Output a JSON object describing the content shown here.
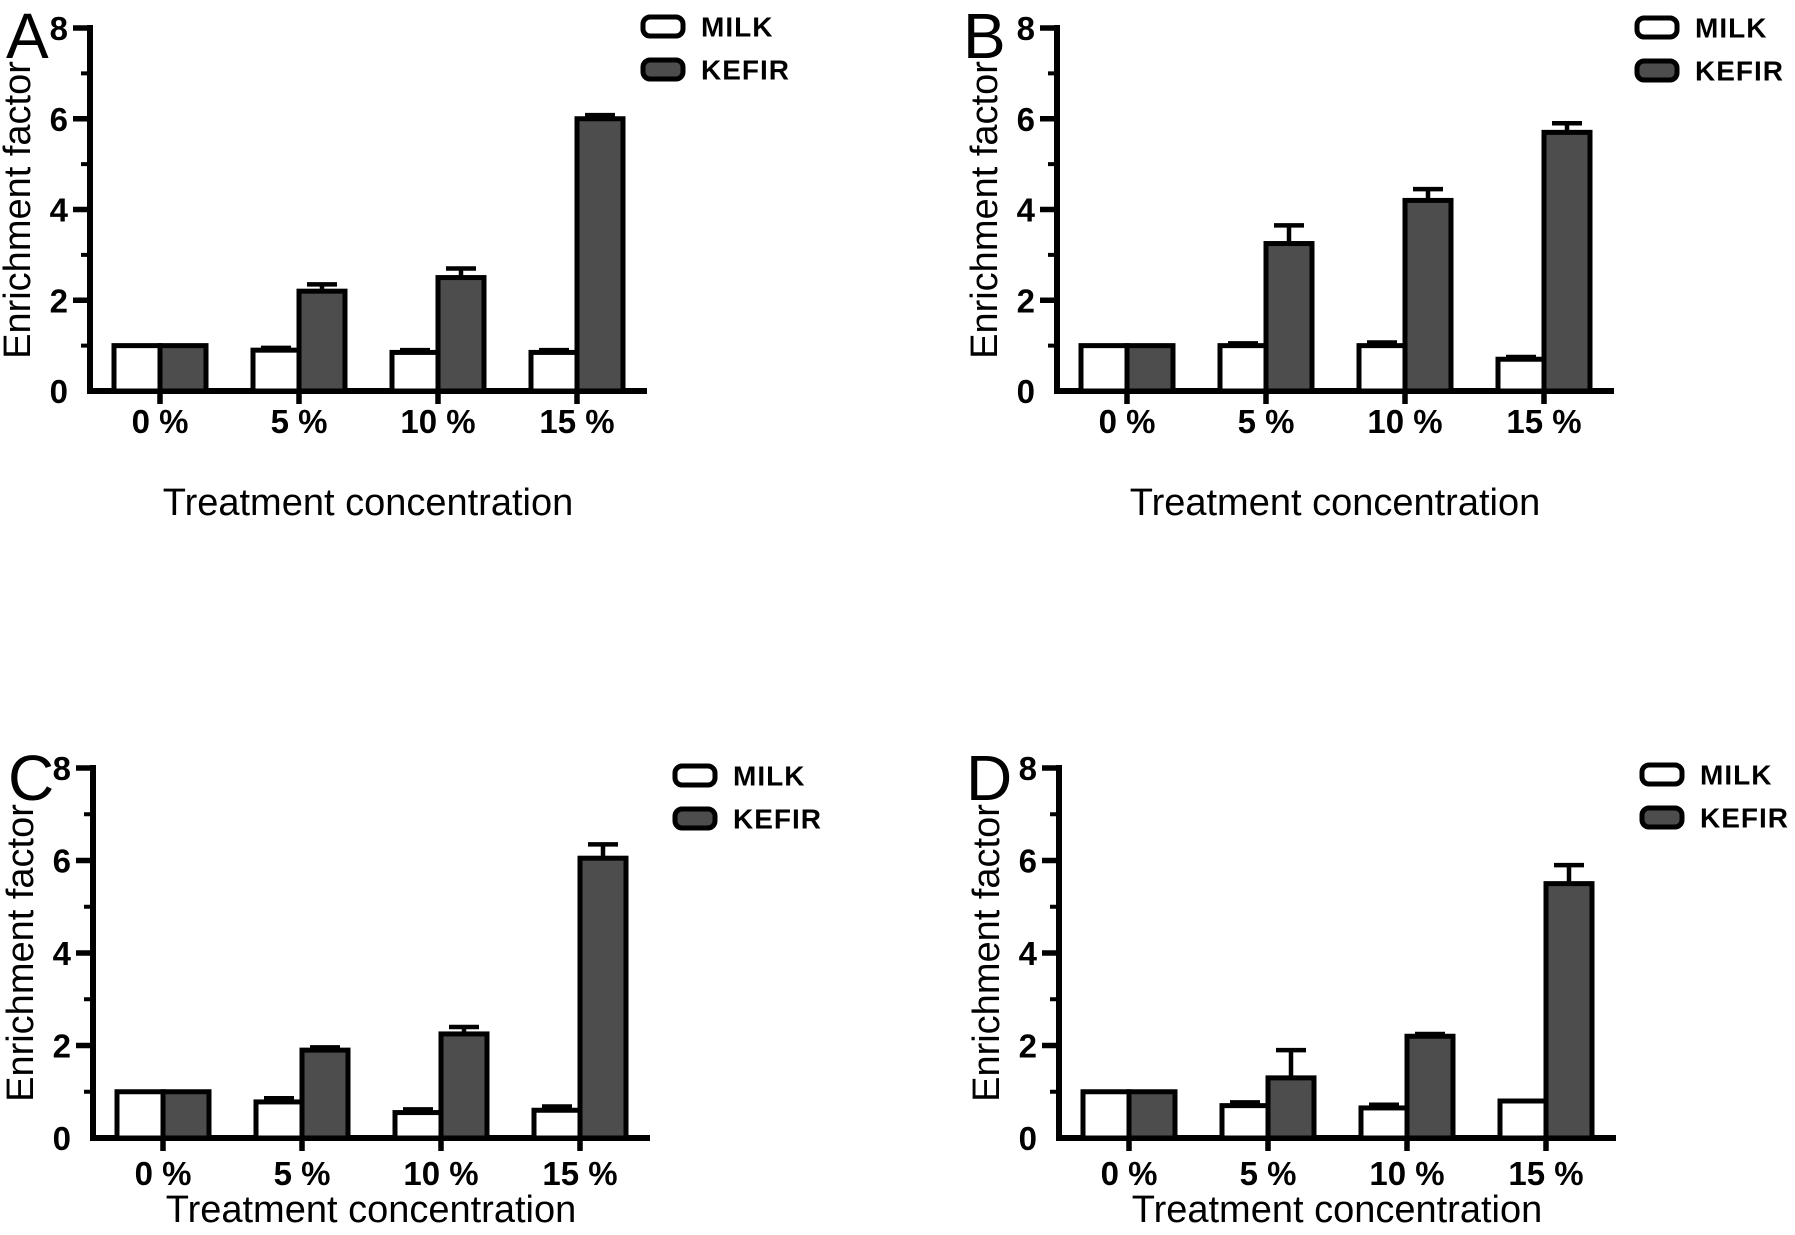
{
  "figure": {
    "description": "Four-panel bar figure comparing enrichment factors of MILK and KEFIR at increasing treatment concentrations"
  },
  "colors": {
    "background": "#ffffff",
    "ink": "#000000",
    "milk_fill": "#ffffff",
    "kefir_fill": "#4d4d4d"
  },
  "chart_data": [
    {
      "type": "bar",
      "panel_label": "A",
      "xlabel": "Treatment concentration",
      "ylabel": "Enrichment factor",
      "categories": [
        "0 %",
        "5 %",
        "10 %",
        "15 %"
      ],
      "ylim": [
        0,
        8
      ],
      "yticks": [
        0,
        2,
        4,
        6,
        8
      ],
      "grid": false,
      "legend_position": "top-right",
      "error_bars": "upper SD caps",
      "series": [
        {
          "name": "MILK",
          "values": [
            1.0,
            0.9,
            0.85,
            0.85
          ],
          "errors": [
            0,
            0.05,
            0.05,
            0.05
          ]
        },
        {
          "name": "KEFIR",
          "values": [
            1.0,
            2.2,
            2.5,
            6.0
          ],
          "errors": [
            0,
            0.15,
            0.2,
            0.08
          ]
        }
      ]
    },
    {
      "type": "bar",
      "panel_label": "B",
      "xlabel": "Treatment concentration",
      "ylabel": "Enrichment factor",
      "categories": [
        "0 %",
        "5 %",
        "10 %",
        "15 %"
      ],
      "ylim": [
        0,
        8
      ],
      "yticks": [
        0,
        2,
        4,
        6,
        8
      ],
      "grid": false,
      "legend_position": "top-right",
      "error_bars": "upper SD caps",
      "series": [
        {
          "name": "MILK",
          "values": [
            1.0,
            1.0,
            1.0,
            0.7
          ],
          "errors": [
            0,
            0.05,
            0.07,
            0.05
          ]
        },
        {
          "name": "KEFIR",
          "values": [
            1.0,
            3.25,
            4.2,
            5.7
          ],
          "errors": [
            0,
            0.4,
            0.25,
            0.2
          ]
        }
      ]
    },
    {
      "type": "bar",
      "panel_label": "C",
      "xlabel": "Treatment concentration",
      "ylabel": "Enrichment factor",
      "categories": [
        "0 %",
        "5 %",
        "10 %",
        "15 %"
      ],
      "ylim": [
        0,
        8
      ],
      "yticks": [
        0,
        2,
        4,
        6,
        8
      ],
      "grid": false,
      "legend_position": "top-right",
      "error_bars": "upper SD caps",
      "series": [
        {
          "name": "MILK",
          "values": [
            1.0,
            0.78,
            0.55,
            0.6
          ],
          "errors": [
            0,
            0.08,
            0.07,
            0.08
          ]
        },
        {
          "name": "KEFIR",
          "values": [
            1.0,
            1.9,
            2.25,
            6.05
          ],
          "errors": [
            0,
            0.06,
            0.15,
            0.3
          ]
        }
      ]
    },
    {
      "type": "bar",
      "panel_label": "D",
      "xlabel": "Treatment concentration",
      "ylabel": "Enrichment factor",
      "categories": [
        "0 %",
        "5 %",
        "10 %",
        "15 %"
      ],
      "ylim": [
        0,
        8
      ],
      "yticks": [
        0,
        2,
        4,
        6,
        8
      ],
      "grid": false,
      "legend_position": "top-right",
      "error_bars": "upper SD caps",
      "series": [
        {
          "name": "MILK",
          "values": [
            1.0,
            0.7,
            0.65,
            0.8
          ],
          "errors": [
            0,
            0.07,
            0.07,
            0
          ]
        },
        {
          "name": "KEFIR",
          "values": [
            1.0,
            1.3,
            2.2,
            5.5
          ],
          "errors": [
            0,
            0.6,
            0.05,
            0.4
          ]
        }
      ]
    }
  ]
}
